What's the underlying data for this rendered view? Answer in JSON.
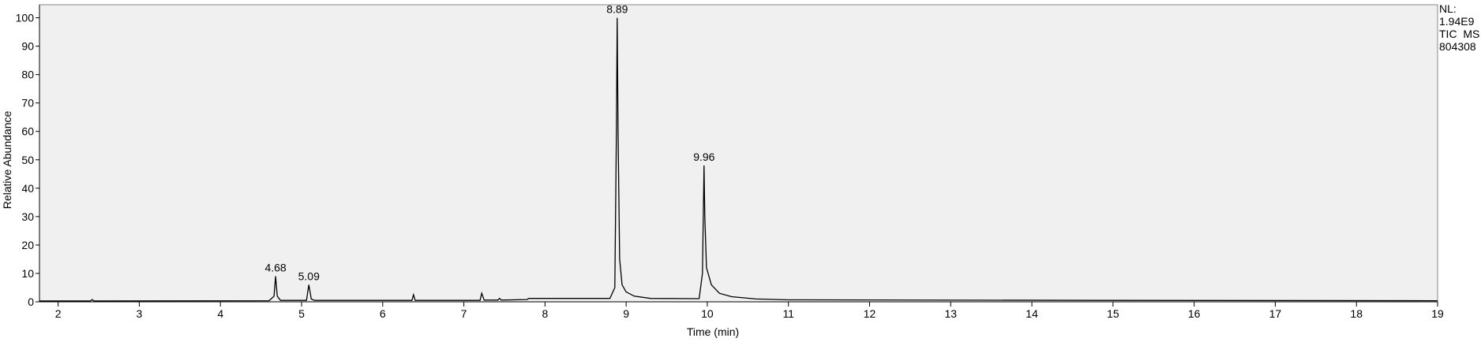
{
  "chart_data": {
    "type": "line",
    "xlabel": "Time (min)",
    "ylabel": "Relative Abundance",
    "side_text": [
      "NL:",
      "1.94E9",
      "TIC  MS",
      "804308"
    ],
    "color": "#000000",
    "x": [
      1.77,
      2.4,
      2.42,
      2.44,
      4.6,
      4.66,
      4.68,
      4.7,
      4.74,
      5.06,
      5.09,
      5.12,
      5.16,
      6.36,
      6.38,
      6.4,
      7.2,
      7.22,
      7.25,
      7.42,
      7.44,
      7.46,
      7.78,
      7.8,
      8.8,
      8.86,
      8.88,
      8.89,
      8.9,
      8.92,
      8.95,
      9.0,
      9.1,
      9.3,
      9.9,
      9.94,
      9.96,
      9.97,
      9.99,
      10.05,
      10.15,
      10.3,
      10.6,
      11,
      15,
      19
    ],
    "values": [
      0.3,
      0.3,
      0.8,
      0.3,
      0.4,
      2,
      9,
      2,
      0.5,
      0.5,
      6,
      1,
      0.5,
      0.5,
      2.5,
      0.5,
      0.5,
      3,
      0.6,
      0.6,
      1.2,
      0.6,
      0.8,
      1.2,
      1.2,
      5,
      60,
      100,
      60,
      15,
      6,
      3.5,
      2,
      1.2,
      1.1,
      10,
      48,
      30,
      12,
      6,
      3,
      1.8,
      1.0,
      0.7,
      0.5,
      0.4
    ],
    "annotations": [
      {
        "x": 4.68,
        "y": 9
      },
      {
        "x": 5.09,
        "y": 6
      },
      {
        "x": 8.89,
        "y": 100
      },
      {
        "x": 9.96,
        "y": 48
      }
    ],
    "xlim": [
      1.77,
      19
    ],
    "ylim": [
      0,
      104.6
    ],
    "xticks": [
      2,
      3,
      4,
      5,
      6,
      7,
      8,
      9,
      10,
      11,
      12,
      13,
      14,
      15,
      16,
      17,
      18,
      19
    ],
    "yticks": [
      0,
      10,
      20,
      30,
      40,
      50,
      60,
      70,
      80,
      90,
      100
    ]
  }
}
